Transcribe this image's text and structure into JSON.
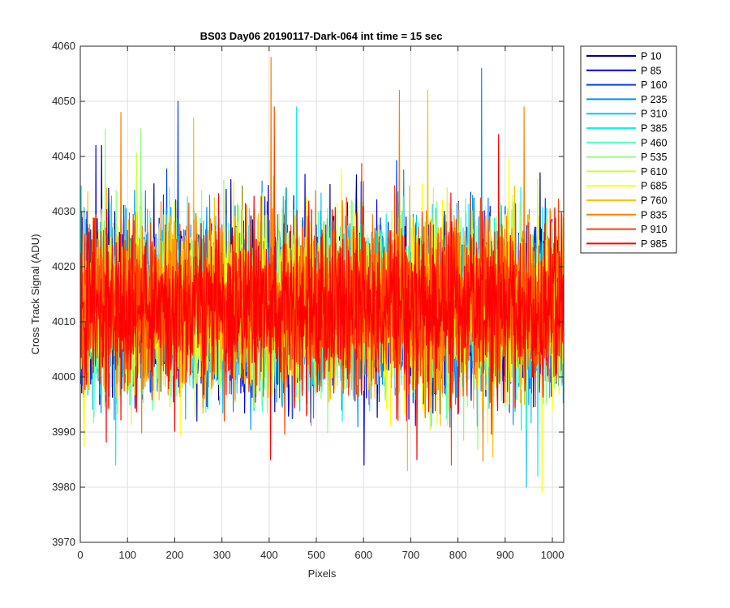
{
  "chart_data": {
    "type": "line",
    "title": "BS03 Day06 20190117-Dark-064 int time = 15 sec",
    "xlabel": "Pixels",
    "ylabel": "Cross Track Signal (ADU)",
    "xlim": [
      0,
      1024
    ],
    "ylim": [
      3970,
      4060
    ],
    "xticks": [
      0,
      100,
      200,
      300,
      400,
      500,
      600,
      700,
      800,
      900,
      1000
    ],
    "yticks": [
      3970,
      3980,
      3990,
      4000,
      4010,
      4020,
      4030,
      4040,
      4050,
      4060
    ],
    "grid": true,
    "legend_position": "outside-top-right",
    "noise_model": {
      "center": 4013,
      "std": 7.5,
      "min": 3979,
      "max": 4058
    },
    "series": [
      {
        "name": "P 10",
        "color": "#00008f"
      },
      {
        "name": "P 85",
        "color": "#0000e6"
      },
      {
        "name": "P 160",
        "color": "#0040ff"
      },
      {
        "name": "P 235",
        "color": "#0090ff"
      },
      {
        "name": "P 310",
        "color": "#00c8ff"
      },
      {
        "name": "P 385",
        "color": "#10f0f0"
      },
      {
        "name": "P 460",
        "color": "#50ffbf"
      },
      {
        "name": "P 535",
        "color": "#90ff80"
      },
      {
        "name": "P 610",
        "color": "#c8ff40"
      },
      {
        "name": "P 685",
        "color": "#ffff00"
      },
      {
        "name": "P 760",
        "color": "#ffc000"
      },
      {
        "name": "P 835",
        "color": "#ff8000"
      },
      {
        "name": "P 910",
        "color": "#ff4000"
      },
      {
        "name": "P 985",
        "color": "#ff0000"
      }
    ],
    "spikes": [
      {
        "x": 32,
        "y": 4042,
        "series": "P 85"
      },
      {
        "x": 44,
        "y": 4042,
        "series": "P 10"
      },
      {
        "x": 52,
        "y": 4045,
        "series": "P 535"
      },
      {
        "x": 74,
        "y": 3984,
        "series": "P 385"
      },
      {
        "x": 85,
        "y": 4048,
        "series": "P 835"
      },
      {
        "x": 127,
        "y": 4045,
        "series": "P 535"
      },
      {
        "x": 206,
        "y": 4050,
        "series": "P 160"
      },
      {
        "x": 239,
        "y": 4047,
        "series": "P 760"
      },
      {
        "x": 403,
        "y": 4058,
        "series": "P 835"
      },
      {
        "x": 402,
        "y": 3985,
        "series": "P 985"
      },
      {
        "x": 410,
        "y": 4049,
        "series": "P 910"
      },
      {
        "x": 457,
        "y": 4049,
        "series": "P 385"
      },
      {
        "x": 600,
        "y": 3984,
        "series": "P 85"
      },
      {
        "x": 675,
        "y": 4052,
        "series": "P 835"
      },
      {
        "x": 692,
        "y": 3983,
        "series": "P 760"
      },
      {
        "x": 712,
        "y": 3985,
        "series": "P 985"
      },
      {
        "x": 735,
        "y": 4052,
        "series": "P 760"
      },
      {
        "x": 785,
        "y": 3984,
        "series": "P 910"
      },
      {
        "x": 849,
        "y": 4056,
        "series": "P 235"
      },
      {
        "x": 885,
        "y": 4044,
        "series": "P 985"
      },
      {
        "x": 939,
        "y": 4049,
        "series": "P 835"
      },
      {
        "x": 944,
        "y": 3980,
        "series": "P 310"
      },
      {
        "x": 968,
        "y": 3982,
        "series": "P 385"
      },
      {
        "x": 977,
        "y": 3979,
        "series": "P 685"
      }
    ]
  }
}
